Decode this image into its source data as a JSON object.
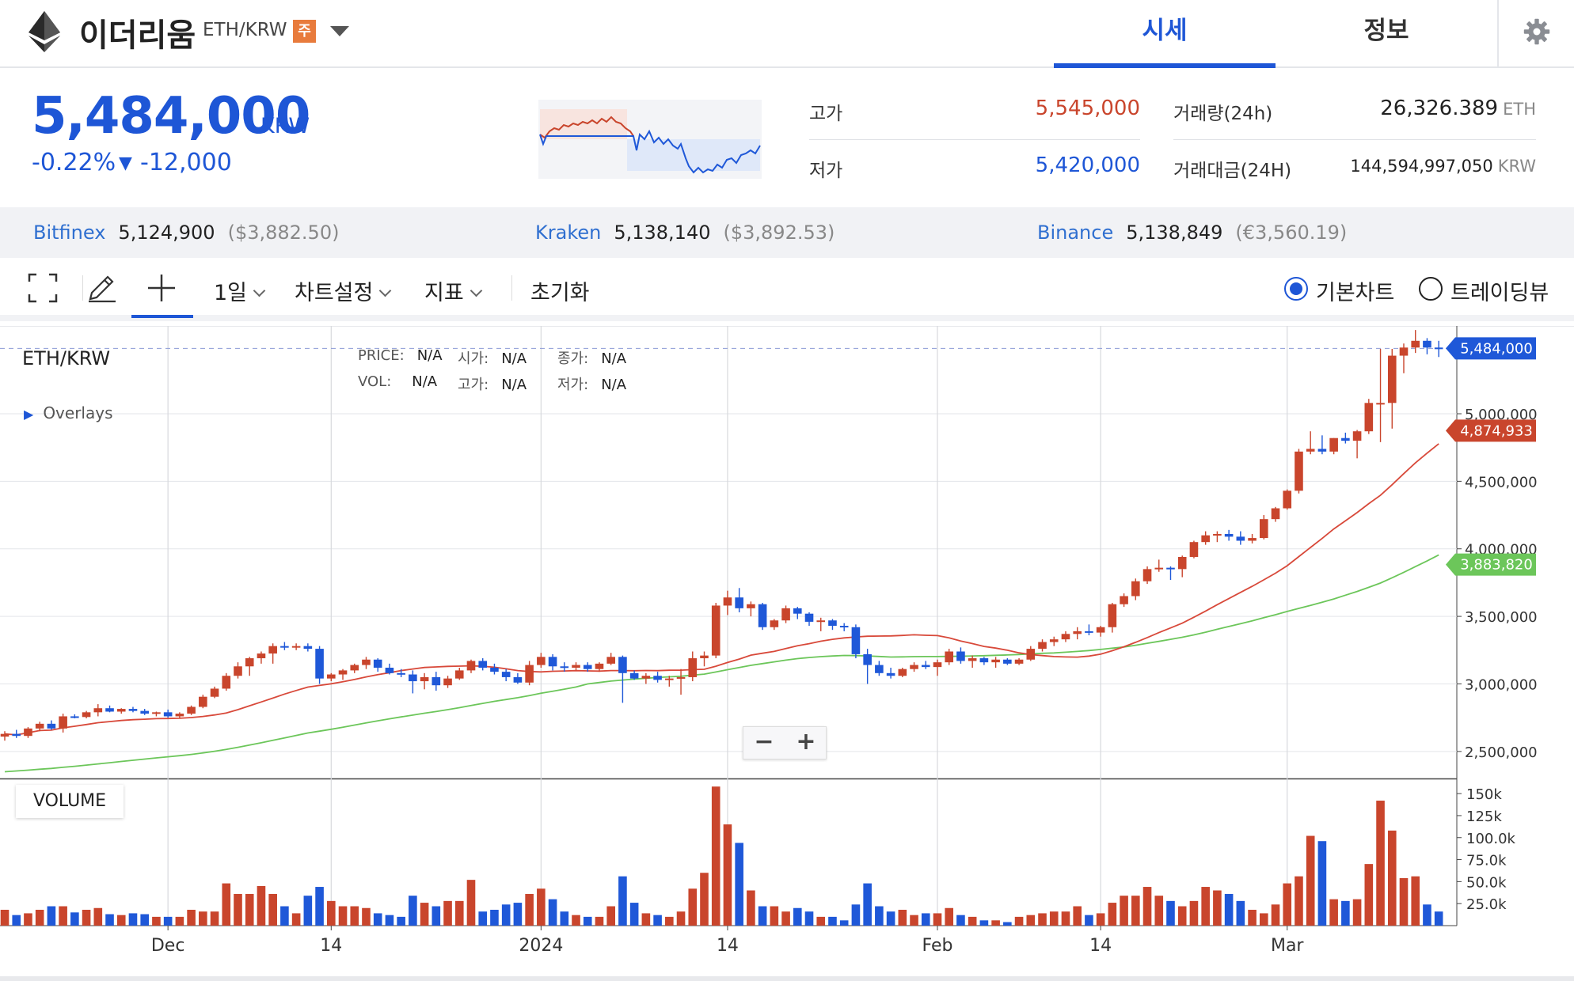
{
  "header": {
    "coin_name": "이더리움",
    "coin_symbol": "ETH/KRW",
    "warning_badge": "주",
    "tabs": [
      {
        "label": "시세",
        "active": true
      },
      {
        "label": "정보",
        "active": false
      }
    ],
    "icons": {
      "logo": "ethereum-logo-icon",
      "dropdown": "triangle-down-icon",
      "settings": "gear-icon"
    }
  },
  "price": {
    "current": "5,484,000",
    "unit": "KRW",
    "change_pct": "-0.22%",
    "change_abs": "-12,000",
    "direction": "down",
    "color": "#1e56d6"
  },
  "stats": {
    "high": {
      "label": "고가",
      "value": "5,545,000",
      "color": "#c9452c"
    },
    "low": {
      "label": "저가",
      "value": "5,420,000",
      "color": "#1e56d6"
    },
    "volume": {
      "label": "거래량(24h)",
      "value": "26,326.389",
      "unit": "ETH"
    },
    "trade_value": {
      "label": "거래대금(24H)",
      "value": "144,594,997,050",
      "unit": "KRW"
    }
  },
  "exchanges": [
    {
      "name": "Bitfinex",
      "price": "5,124,900",
      "converted": "($3,882.50)"
    },
    {
      "name": "Kraken",
      "price": "5,138,140",
      "converted": "($3,892.53)"
    },
    {
      "name": "Binance",
      "price": "5,138,849",
      "converted": "(€3,560.19)"
    }
  ],
  "toolbar": {
    "interval": "1일",
    "chart_settings": "차트설정",
    "indicators": "지표",
    "reset": "초기화",
    "chart_modes": [
      {
        "label": "기본차트",
        "selected": true
      },
      {
        "label": "트레이딩뷰",
        "selected": false
      }
    ]
  },
  "chart": {
    "pair": "ETH/KRW",
    "overlays_label": "Overlays",
    "ohlc_labels": [
      {
        "label": "PRICE:",
        "value": "N/A"
      },
      {
        "label": "시가:",
        "value": "N/A"
      },
      {
        "label": "종가:",
        "value": "N/A"
      },
      {
        "label": "VOL:",
        "value": "N/A"
      },
      {
        "label": "고가:",
        "value": "N/A"
      },
      {
        "label": "저가:",
        "value": "N/A"
      }
    ],
    "volume_label": "VOLUME",
    "zoom_out": "−",
    "zoom_in": "+"
  },
  "chart_data": {
    "type": "candlestick",
    "colors": {
      "up": "#c9452c",
      "down": "#1f58d8",
      "ma_fast": "#d8493a",
      "ma_slow": "#6cc65a"
    },
    "price_axis": {
      "ticks": [
        "5,000,000",
        "4,500,000",
        "4,000,000",
        "3,500,000",
        "3,000,000",
        "2,500,000"
      ],
      "range": [
        2300000,
        5650000
      ]
    },
    "volume_axis": {
      "ticks": [
        "150k",
        "125k",
        "100.0k",
        "75.0k",
        "50.0k",
        "25.0k"
      ],
      "range": [
        0,
        160000
      ]
    },
    "x_labels": [
      "Dec",
      "14",
      "2024",
      "14",
      "Feb",
      "14",
      "Mar"
    ],
    "badges": [
      {
        "value": "5,484,000",
        "color": "#1f58d8"
      },
      {
        "value": "4,874,933",
        "color": "#c9452c"
      },
      {
        "value": "3,883,820",
        "color": "#6cc65a"
      }
    ],
    "candles": [
      {
        "o": 2610000,
        "h": 2650000,
        "l": 2580000,
        "c": 2630000,
        "v": 18000
      },
      {
        "o": 2630000,
        "h": 2660000,
        "l": 2600000,
        "c": 2615000,
        "v": 12000
      },
      {
        "o": 2615000,
        "h": 2680000,
        "l": 2600000,
        "c": 2670000,
        "v": 14000
      },
      {
        "o": 2670000,
        "h": 2720000,
        "l": 2650000,
        "c": 2705000,
        "v": 18000
      },
      {
        "o": 2705000,
        "h": 2730000,
        "l": 2660000,
        "c": 2670000,
        "v": 22000
      },
      {
        "o": 2670000,
        "h": 2780000,
        "l": 2640000,
        "c": 2760000,
        "v": 22000
      },
      {
        "o": 2760000,
        "h": 2775000,
        "l": 2745000,
        "c": 2755000,
        "v": 15000
      },
      {
        "o": 2755000,
        "h": 2800000,
        "l": 2745000,
        "c": 2790000,
        "v": 18000
      },
      {
        "o": 2790000,
        "h": 2850000,
        "l": 2760000,
        "c": 2820000,
        "v": 20000
      },
      {
        "o": 2820000,
        "h": 2840000,
        "l": 2790000,
        "c": 2795000,
        "v": 13000
      },
      {
        "o": 2795000,
        "h": 2820000,
        "l": 2780000,
        "c": 2815000,
        "v": 12000
      },
      {
        "o": 2815000,
        "h": 2830000,
        "l": 2790000,
        "c": 2800000,
        "v": 14000
      },
      {
        "o": 2800000,
        "h": 2815000,
        "l": 2770000,
        "c": 2780000,
        "v": 13000
      },
      {
        "o": 2780000,
        "h": 2795000,
        "l": 2760000,
        "c": 2790000,
        "v": 10000
      },
      {
        "o": 2790000,
        "h": 2810000,
        "l": 2750000,
        "c": 2760000,
        "v": 10000
      },
      {
        "o": 2760000,
        "h": 2790000,
        "l": 2745000,
        "c": 2780000,
        "v": 10000
      },
      {
        "o": 2780000,
        "h": 2840000,
        "l": 2770000,
        "c": 2830000,
        "v": 18000
      },
      {
        "o": 2830000,
        "h": 2920000,
        "l": 2820000,
        "c": 2905000,
        "v": 16000
      },
      {
        "o": 2905000,
        "h": 2980000,
        "l": 2895000,
        "c": 2965000,
        "v": 16000
      },
      {
        "o": 2965000,
        "h": 3080000,
        "l": 2950000,
        "c": 3060000,
        "v": 48000
      },
      {
        "o": 3060000,
        "h": 3160000,
        "l": 3040000,
        "c": 3130000,
        "v": 36000
      },
      {
        "o": 3130000,
        "h": 3200000,
        "l": 3060000,
        "c": 3190000,
        "v": 36000
      },
      {
        "o": 3190000,
        "h": 3240000,
        "l": 3150000,
        "c": 3225000,
        "v": 45000
      },
      {
        "o": 3225000,
        "h": 3300000,
        "l": 3150000,
        "c": 3280000,
        "v": 36000
      },
      {
        "o": 3280000,
        "h": 3310000,
        "l": 3250000,
        "c": 3270000,
        "v": 22000
      },
      {
        "o": 3270000,
        "h": 3300000,
        "l": 3250000,
        "c": 3280000,
        "v": 14000
      },
      {
        "o": 3280000,
        "h": 3300000,
        "l": 3240000,
        "c": 3260000,
        "v": 34000
      },
      {
        "o": 3260000,
        "h": 3280000,
        "l": 3000000,
        "c": 3040000,
        "v": 44000
      },
      {
        "o": 3040000,
        "h": 3080000,
        "l": 3020000,
        "c": 3070000,
        "v": 28000
      },
      {
        "o": 3070000,
        "h": 3110000,
        "l": 3030000,
        "c": 3100000,
        "v": 22000
      },
      {
        "o": 3100000,
        "h": 3150000,
        "l": 3080000,
        "c": 3140000,
        "v": 22000
      },
      {
        "o": 3140000,
        "h": 3200000,
        "l": 3110000,
        "c": 3180000,
        "v": 20000
      },
      {
        "o": 3180000,
        "h": 3190000,
        "l": 3090000,
        "c": 3120000,
        "v": 14000
      },
      {
        "o": 3120000,
        "h": 3150000,
        "l": 3070000,
        "c": 3080000,
        "v": 12000
      },
      {
        "o": 3080000,
        "h": 3110000,
        "l": 3050000,
        "c": 3070000,
        "v": 10000
      },
      {
        "o": 3070000,
        "h": 3100000,
        "l": 2930000,
        "c": 3020000,
        "v": 34000
      },
      {
        "o": 3020000,
        "h": 3080000,
        "l": 2960000,
        "c": 3050000,
        "v": 26000
      },
      {
        "o": 3050000,
        "h": 3090000,
        "l": 2950000,
        "c": 2990000,
        "v": 22000
      },
      {
        "o": 2990000,
        "h": 3060000,
        "l": 2970000,
        "c": 3040000,
        "v": 28000
      },
      {
        "o": 3040000,
        "h": 3120000,
        "l": 3030000,
        "c": 3100000,
        "v": 28000
      },
      {
        "o": 3100000,
        "h": 3180000,
        "l": 3080000,
        "c": 3170000,
        "v": 52000
      },
      {
        "o": 3170000,
        "h": 3190000,
        "l": 3100000,
        "c": 3120000,
        "v": 16000
      },
      {
        "o": 3120000,
        "h": 3150000,
        "l": 3070000,
        "c": 3090000,
        "v": 18000
      },
      {
        "o": 3090000,
        "h": 3110000,
        "l": 3020000,
        "c": 3050000,
        "v": 24000
      },
      {
        "o": 3050000,
        "h": 3080000,
        "l": 3000000,
        "c": 3010000,
        "v": 26000
      },
      {
        "o": 3010000,
        "h": 3170000,
        "l": 2990000,
        "c": 3140000,
        "v": 36000
      },
      {
        "o": 3140000,
        "h": 3230000,
        "l": 3120000,
        "c": 3200000,
        "v": 42000
      },
      {
        "o": 3200000,
        "h": 3220000,
        "l": 3100000,
        "c": 3130000,
        "v": 30000
      },
      {
        "o": 3130000,
        "h": 3160000,
        "l": 3090000,
        "c": 3120000,
        "v": 16000
      },
      {
        "o": 3120000,
        "h": 3160000,
        "l": 3100000,
        "c": 3140000,
        "v": 12000
      },
      {
        "o": 3140000,
        "h": 3160000,
        "l": 3090000,
        "c": 3110000,
        "v": 10000
      },
      {
        "o": 3110000,
        "h": 3160000,
        "l": 3090000,
        "c": 3150000,
        "v": 10000
      },
      {
        "o": 3150000,
        "h": 3230000,
        "l": 3140000,
        "c": 3200000,
        "v": 22000
      },
      {
        "o": 3200000,
        "h": 3210000,
        "l": 2860000,
        "c": 3080000,
        "v": 56000
      },
      {
        "o": 3080000,
        "h": 3100000,
        "l": 3030000,
        "c": 3040000,
        "v": 26000
      },
      {
        "o": 3040000,
        "h": 3080000,
        "l": 3000000,
        "c": 3060000,
        "v": 14000
      },
      {
        "o": 3060000,
        "h": 3090000,
        "l": 3010000,
        "c": 3030000,
        "v": 12000
      },
      {
        "o": 3030000,
        "h": 3060000,
        "l": 2980000,
        "c": 3040000,
        "v": 10000
      },
      {
        "o": 3040000,
        "h": 3110000,
        "l": 2920000,
        "c": 3050000,
        "v": 16000
      },
      {
        "o": 3050000,
        "h": 3240000,
        "l": 3020000,
        "c": 3190000,
        "v": 42000
      },
      {
        "o": 3190000,
        "h": 3240000,
        "l": 3130000,
        "c": 3210000,
        "v": 60000
      },
      {
        "o": 3210000,
        "h": 3600000,
        "l": 3190000,
        "c": 3580000,
        "v": 158000
      },
      {
        "o": 3580000,
        "h": 3690000,
        "l": 3510000,
        "c": 3640000,
        "v": 115000
      },
      {
        "o": 3640000,
        "h": 3710000,
        "l": 3530000,
        "c": 3560000,
        "v": 94000
      },
      {
        "o": 3560000,
        "h": 3610000,
        "l": 3500000,
        "c": 3590000,
        "v": 40000
      },
      {
        "o": 3590000,
        "h": 3600000,
        "l": 3400000,
        "c": 3420000,
        "v": 22000
      },
      {
        "o": 3420000,
        "h": 3480000,
        "l": 3400000,
        "c": 3470000,
        "v": 22000
      },
      {
        "o": 3470000,
        "h": 3580000,
        "l": 3450000,
        "c": 3560000,
        "v": 16000
      },
      {
        "o": 3560000,
        "h": 3570000,
        "l": 3480000,
        "c": 3520000,
        "v": 20000
      },
      {
        "o": 3520000,
        "h": 3530000,
        "l": 3430000,
        "c": 3460000,
        "v": 16000
      },
      {
        "o": 3460000,
        "h": 3490000,
        "l": 3390000,
        "c": 3470000,
        "v": 10000
      },
      {
        "o": 3470000,
        "h": 3480000,
        "l": 3400000,
        "c": 3430000,
        "v": 10000
      },
      {
        "o": 3430000,
        "h": 3450000,
        "l": 3390000,
        "c": 3420000,
        "v": 6000
      },
      {
        "o": 3420000,
        "h": 3440000,
        "l": 3190000,
        "c": 3220000,
        "v": 24000
      },
      {
        "o": 3220000,
        "h": 3260000,
        "l": 3000000,
        "c": 3140000,
        "v": 48000
      },
      {
        "o": 3140000,
        "h": 3170000,
        "l": 3060000,
        "c": 3080000,
        "v": 22000
      },
      {
        "o": 3080000,
        "h": 3120000,
        "l": 3040000,
        "c": 3060000,
        "v": 16000
      },
      {
        "o": 3060000,
        "h": 3120000,
        "l": 3050000,
        "c": 3110000,
        "v": 18000
      },
      {
        "o": 3110000,
        "h": 3160000,
        "l": 3090000,
        "c": 3140000,
        "v": 12000
      },
      {
        "o": 3140000,
        "h": 3170000,
        "l": 3110000,
        "c": 3125000,
        "v": 14000
      },
      {
        "o": 3125000,
        "h": 3180000,
        "l": 3060000,
        "c": 3160000,
        "v": 14000
      },
      {
        "o": 3160000,
        "h": 3260000,
        "l": 3140000,
        "c": 3240000,
        "v": 20000
      },
      {
        "o": 3240000,
        "h": 3270000,
        "l": 3150000,
        "c": 3170000,
        "v": 12000
      },
      {
        "o": 3170000,
        "h": 3210000,
        "l": 3120000,
        "c": 3190000,
        "v": 10000
      },
      {
        "o": 3190000,
        "h": 3200000,
        "l": 3140000,
        "c": 3160000,
        "v": 6000
      },
      {
        "o": 3160000,
        "h": 3200000,
        "l": 3120000,
        "c": 3180000,
        "v": 6000
      },
      {
        "o": 3180000,
        "h": 3190000,
        "l": 3140000,
        "c": 3150000,
        "v": 4000
      },
      {
        "o": 3150000,
        "h": 3190000,
        "l": 3140000,
        "c": 3180000,
        "v": 10000
      },
      {
        "o": 3180000,
        "h": 3280000,
        "l": 3170000,
        "c": 3260000,
        "v": 12000
      },
      {
        "o": 3260000,
        "h": 3330000,
        "l": 3240000,
        "c": 3310000,
        "v": 14000
      },
      {
        "o": 3310000,
        "h": 3350000,
        "l": 3280000,
        "c": 3330000,
        "v": 16000
      },
      {
        "o": 3330000,
        "h": 3390000,
        "l": 3310000,
        "c": 3370000,
        "v": 16000
      },
      {
        "o": 3370000,
        "h": 3420000,
        "l": 3330000,
        "c": 3390000,
        "v": 22000
      },
      {
        "o": 3390000,
        "h": 3440000,
        "l": 3360000,
        "c": 3380000,
        "v": 12000
      },
      {
        "o": 3380000,
        "h": 3430000,
        "l": 3350000,
        "c": 3420000,
        "v": 14000
      },
      {
        "o": 3420000,
        "h": 3600000,
        "l": 3380000,
        "c": 3590000,
        "v": 26000
      },
      {
        "o": 3590000,
        "h": 3670000,
        "l": 3570000,
        "c": 3650000,
        "v": 34000
      },
      {
        "o": 3650000,
        "h": 3780000,
        "l": 3620000,
        "c": 3760000,
        "v": 34000
      },
      {
        "o": 3760000,
        "h": 3870000,
        "l": 3740000,
        "c": 3850000,
        "v": 44000
      },
      {
        "o": 3850000,
        "h": 3920000,
        "l": 3830000,
        "c": 3860000,
        "v": 34000
      },
      {
        "o": 3860000,
        "h": 3870000,
        "l": 3770000,
        "c": 3850000,
        "v": 28000
      },
      {
        "o": 3850000,
        "h": 3950000,
        "l": 3790000,
        "c": 3940000,
        "v": 22000
      },
      {
        "o": 3940000,
        "h": 4060000,
        "l": 3930000,
        "c": 4050000,
        "v": 28000
      },
      {
        "o": 4050000,
        "h": 4130000,
        "l": 4030000,
        "c": 4100000,
        "v": 44000
      },
      {
        "o": 4100000,
        "h": 4130000,
        "l": 4050000,
        "c": 4110000,
        "v": 40000
      },
      {
        "o": 4110000,
        "h": 4140000,
        "l": 4060000,
        "c": 4090000,
        "v": 36000
      },
      {
        "o": 4090000,
        "h": 4130000,
        "l": 4030000,
        "c": 4060000,
        "v": 28000
      },
      {
        "o": 4060000,
        "h": 4110000,
        "l": 4040000,
        "c": 4080000,
        "v": 18000
      },
      {
        "o": 4080000,
        "h": 4250000,
        "l": 4070000,
        "c": 4220000,
        "v": 14000
      },
      {
        "o": 4220000,
        "h": 4310000,
        "l": 4200000,
        "c": 4300000,
        "v": 24000
      },
      {
        "o": 4300000,
        "h": 4440000,
        "l": 4290000,
        "c": 4430000,
        "v": 48000
      },
      {
        "o": 4430000,
        "h": 4740000,
        "l": 4410000,
        "c": 4720000,
        "v": 56000
      },
      {
        "o": 4720000,
        "h": 4870000,
        "l": 4700000,
        "c": 4740000,
        "v": 102000
      },
      {
        "o": 4740000,
        "h": 4840000,
        "l": 4700000,
        "c": 4720000,
        "v": 96000
      },
      {
        "o": 4720000,
        "h": 4820000,
        "l": 4700000,
        "c": 4820000,
        "v": 30000
      },
      {
        "o": 4820000,
        "h": 4860000,
        "l": 4780000,
        "c": 4800000,
        "v": 28000
      },
      {
        "o": 4800000,
        "h": 4880000,
        "l": 4670000,
        "c": 4870000,
        "v": 30000
      },
      {
        "o": 4870000,
        "h": 5110000,
        "l": 4850000,
        "c": 5080000,
        "v": 70000
      },
      {
        "o": 5080000,
        "h": 5480000,
        "l": 4790000,
        "c": 5080000,
        "v": 142000
      },
      {
        "o": 5080000,
        "h": 5480000,
        "l": 4890000,
        "c": 5430000,
        "v": 108000
      },
      {
        "o": 5430000,
        "h": 5520000,
        "l": 5300000,
        "c": 5490000,
        "v": 54000
      },
      {
        "o": 5490000,
        "h": 5620000,
        "l": 5450000,
        "c": 5540000,
        "v": 56000
      },
      {
        "o": 5540000,
        "h": 5560000,
        "l": 5440000,
        "c": 5490000,
        "v": 24000
      },
      {
        "o": 5490000,
        "h": 5540000,
        "l": 5420000,
        "c": 5484000,
        "v": 16000
      }
    ]
  }
}
